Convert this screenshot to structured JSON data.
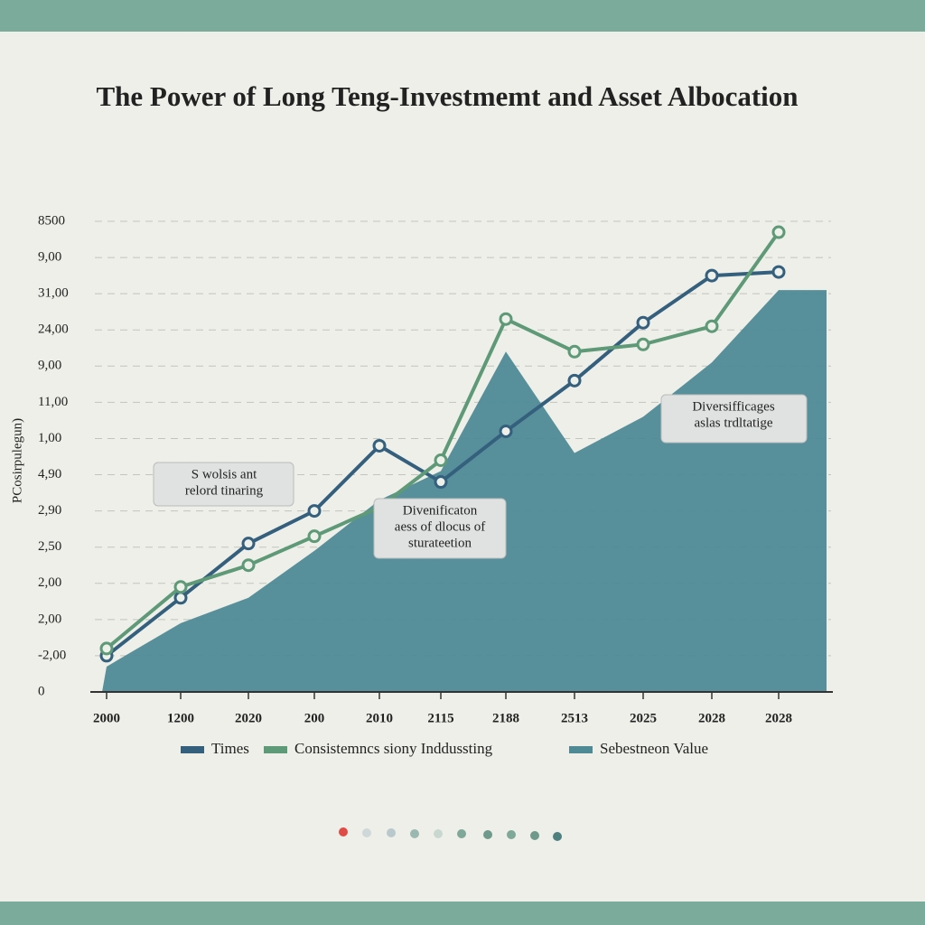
{
  "chart_data": {
    "type": "line",
    "title": "The Power of Long Teng-Investmemt and Asset Albocation",
    "y_label": "PCosirpulegun)",
    "categories": [
      "2000",
      "1200",
      "2020",
      "200",
      "2010",
      "2115",
      "2188",
      "2513",
      "2025",
      "2028",
      "2028"
    ],
    "ylim": [
      0,
      13
    ],
    "yticks": [
      0,
      {
        "value": 1,
        "label": "-2,00"
      },
      {
        "value": 2,
        "label": "2,00"
      },
      {
        "value": 3,
        "label": "2,00"
      },
      {
        "value": 4,
        "label": "2,50"
      },
      {
        "value": 5,
        "label": "2,90"
      },
      {
        "value": 6,
        "label": "4,90"
      },
      {
        "value": 7,
        "label": "1,00"
      },
      {
        "value": 8,
        "label": "11,00"
      },
      {
        "value": 9,
        "label": "9,00"
      },
      {
        "value": 10,
        "label": "24,00"
      },
      {
        "value": 11,
        "label": "31,00"
      },
      {
        "value": 12,
        "label": "9,00"
      },
      {
        "value": 13,
        "label": "8500"
      }
    ],
    "grid": true,
    "series": [
      {
        "name": "Times",
        "color": "#34607e",
        "style": "line",
        "values": [
          1.0,
          2.6,
          4.1,
          5.0,
          6.8,
          5.8,
          7.2,
          8.6,
          10.2,
          11.5,
          11.6
        ]
      },
      {
        "name": "Consistemncs siony Inddussting",
        "color": "#5e9a78",
        "style": "line",
        "values": [
          1.2,
          2.9,
          3.5,
          4.3,
          5.1,
          6.4,
          10.3,
          9.4,
          9.6,
          10.1,
          12.7
        ]
      },
      {
        "name": "Sebestneon Value",
        "color": "#4e8a96",
        "style": "area",
        "values": [
          0.7,
          1.9,
          2.6,
          3.9,
          5.3,
          6.1,
          9.4,
          6.6,
          7.6,
          9.1,
          11.1
        ]
      }
    ],
    "annotations": [
      {
        "lines": [
          "S wolsis ant",
          "relord tinaring"
        ]
      },
      {
        "lines": [
          "Divenificaton",
          "aess of dlocus of",
          "sturateetion"
        ]
      },
      {
        "lines": [
          "Diversifficages",
          "aslas trdltatige"
        ]
      }
    ]
  }
}
